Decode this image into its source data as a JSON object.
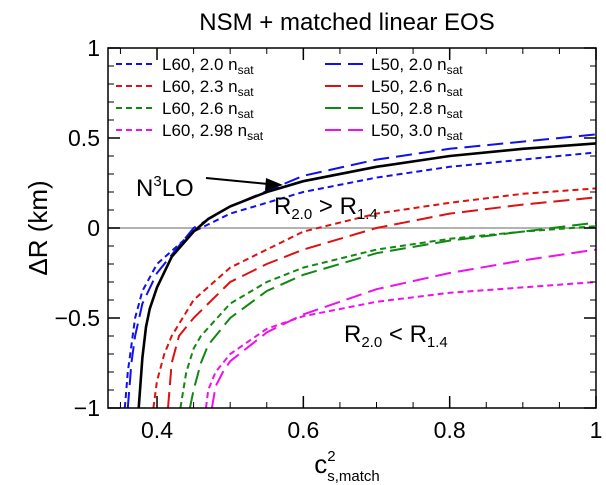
{
  "chart_data": {
    "type": "line",
    "title": "NSM + matched linear EOS",
    "xlabel": {
      "main": "c",
      "sup": "2",
      "sub": "s,match"
    },
    "ylabel": "ΔR (km)",
    "xlim": [
      0.333,
      1.0
    ],
    "ylim": [
      -1.0,
      1.0
    ],
    "xticks": [
      0.4,
      0.6,
      0.8,
      1.0
    ],
    "xtick_labels": [
      "0.4",
      "0.6",
      "0.8",
      "1"
    ],
    "yticks": [
      -1.0,
      -0.5,
      0.0,
      0.5,
      1.0
    ],
    "ytick_labels": [
      "−1",
      "−0.5",
      "0",
      "0.5",
      "1"
    ],
    "reference_line": {
      "y": 0,
      "color": "#999999"
    },
    "legend_placement": "top-left",
    "series": [
      {
        "name": "L60, 2.0",
        "sub": "sat",
        "unit": " n",
        "color": "#1010ee",
        "dash": "short",
        "x": [
          0.356,
          0.36,
          0.37,
          0.38,
          0.4,
          0.45,
          0.5,
          0.6,
          0.7,
          0.8,
          0.9,
          1.0
        ],
        "y": [
          -1.0,
          -0.8,
          -0.5,
          -0.35,
          -0.2,
          -0.02,
          0.08,
          0.2,
          0.28,
          0.34,
          0.38,
          0.42
        ]
      },
      {
        "name": "L60, 2.3",
        "sub": "sat",
        "unit": " n",
        "color": "#e01010",
        "dash": "short",
        "x": [
          0.395,
          0.4,
          0.41,
          0.42,
          0.45,
          0.5,
          0.6,
          0.7,
          0.8,
          0.9,
          1.0
        ],
        "y": [
          -1.0,
          -0.85,
          -0.7,
          -0.6,
          -0.4,
          -0.22,
          -0.02,
          0.08,
          0.14,
          0.19,
          0.22
        ]
      },
      {
        "name": "L60, 2.6",
        "sub": "sat",
        "unit": " n",
        "color": "#118811",
        "dash": "short",
        "x": [
          0.432,
          0.44,
          0.45,
          0.46,
          0.5,
          0.55,
          0.6,
          0.7,
          0.8,
          0.9,
          1.0
        ],
        "y": [
          -1.0,
          -0.8,
          -0.67,
          -0.6,
          -0.42,
          -0.3,
          -0.22,
          -0.12,
          -0.06,
          -0.02,
          0.01
        ]
      },
      {
        "name": "L60, 2.98",
        "sub": "sat",
        "unit": " n",
        "color": "#ee10ee",
        "dash": "short",
        "x": [
          0.467,
          0.47,
          0.48,
          0.49,
          0.5,
          0.55,
          0.6,
          0.7,
          0.8,
          0.9,
          1.0
        ],
        "y": [
          -1.0,
          -0.9,
          -0.8,
          -0.75,
          -0.7,
          -0.56,
          -0.49,
          -0.41,
          -0.36,
          -0.33,
          -0.3
        ]
      },
      {
        "name": "L50, 2.0",
        "sub": "sat",
        "unit": " n",
        "color": "#1010ee",
        "dash": "long",
        "x": [
          0.36,
          0.365,
          0.37,
          0.38,
          0.4,
          0.45,
          0.5,
          0.6,
          0.7,
          0.8,
          0.9,
          1.0
        ],
        "y": [
          -1.0,
          -0.75,
          -0.6,
          -0.42,
          -0.25,
          0.0,
          0.12,
          0.29,
          0.38,
          0.44,
          0.48,
          0.52
        ]
      },
      {
        "name": "L50, 2.6",
        "sub": "sat",
        "unit": " n",
        "color": "#e01010",
        "dash": "long",
        "x": [
          0.415,
          0.42,
          0.43,
          0.45,
          0.5,
          0.55,
          0.6,
          0.7,
          0.8,
          0.9,
          1.0
        ],
        "y": [
          -1.0,
          -0.75,
          -0.6,
          -0.5,
          -0.3,
          -0.2,
          -0.12,
          0.0,
          0.08,
          0.13,
          0.17
        ]
      },
      {
        "name": "L50, 2.8",
        "sub": "sat",
        "unit": " n",
        "color": "#118811",
        "dash": "long",
        "x": [
          0.445,
          0.45,
          0.46,
          0.47,
          0.5,
          0.55,
          0.6,
          0.7,
          0.8,
          0.9,
          1.0
        ],
        "y": [
          -1.0,
          -0.9,
          -0.75,
          -0.65,
          -0.5,
          -0.35,
          -0.26,
          -0.14,
          -0.07,
          -0.02,
          0.03
        ]
      },
      {
        "name": "L50, 3.0",
        "sub": "sat",
        "unit": " n",
        "color": "#ee10ee",
        "dash": "long",
        "x": [
          0.475,
          0.48,
          0.49,
          0.5,
          0.55,
          0.6,
          0.7,
          0.8,
          0.9,
          1.0
        ],
        "y": [
          -1.0,
          -0.88,
          -0.8,
          -0.74,
          -0.58,
          -0.48,
          -0.34,
          -0.25,
          -0.18,
          -0.12
        ]
      },
      {
        "name": "N3LO",
        "color": "#000000",
        "dash": "solid",
        "legend": false,
        "x": [
          0.375,
          0.38,
          0.385,
          0.39,
          0.4,
          0.42,
          0.45,
          0.47,
          0.5,
          0.55,
          0.6,
          0.7,
          0.8,
          0.9,
          1.0
        ],
        "y": [
          -1.0,
          -0.72,
          -0.55,
          -0.45,
          -0.33,
          -0.16,
          -0.02,
          0.05,
          0.12,
          0.2,
          0.26,
          0.34,
          0.4,
          0.44,
          0.47
        ]
      }
    ],
    "annotations": {
      "n3lo": {
        "base": "N",
        "sup": "3",
        "rest": "LO"
      },
      "r_greater": {
        "r1": "R",
        "sub1": "2.0",
        "op": " > ",
        "r2": "R",
        "sub2": "1.4"
      },
      "r_less": {
        "r1": "R",
        "sub1": "2.0",
        "op": " < ",
        "r2": "R",
        "sub2": "1.4"
      }
    }
  }
}
